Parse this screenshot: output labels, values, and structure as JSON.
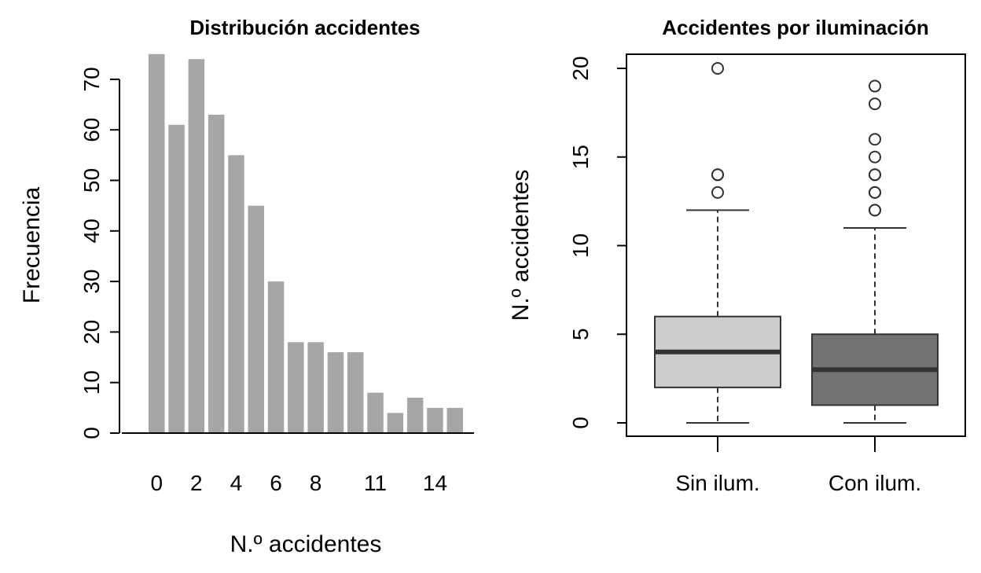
{
  "chart_data": [
    {
      "type": "bar",
      "title": "Distribución accidentes",
      "xlabel": "N.º accidentes",
      "ylabel": "Frecuencia",
      "categories": [
        "0",
        "1",
        "2",
        "3",
        "4",
        "5",
        "6",
        "7",
        "8",
        "9",
        "10",
        "11",
        "12",
        "13",
        "14",
        "15"
      ],
      "values": [
        75,
        61,
        74,
        63,
        55,
        45,
        30,
        18,
        18,
        16,
        16,
        8,
        4,
        7,
        5,
        5
      ],
      "x_tick_labels": [
        "0",
        "2",
        "4",
        "6",
        "8",
        "11",
        "14"
      ],
      "y_ticks": [
        "0",
        "10",
        "20",
        "30",
        "40",
        "50",
        "60",
        "70"
      ],
      "ylim": [
        0,
        75
      ],
      "bar_color": "#a6a6a6",
      "grid": false
    },
    {
      "type": "boxplot",
      "title": "Accidentes por iluminación",
      "xlabel": "",
      "ylabel": "N.º accidentes",
      "ylim": [
        0,
        20
      ],
      "y_ticks": [
        "0",
        "5",
        "10",
        "15",
        "20"
      ],
      "grid": false,
      "groups": [
        {
          "label": "Sin ilum.",
          "color": "#cccccc",
          "min": 0,
          "q1": 2,
          "median": 4,
          "q3": 6,
          "max": 12,
          "outliers": [
            13,
            14,
            14,
            20
          ]
        },
        {
          "label": "Con ilum.",
          "color": "#737373",
          "min": 0,
          "q1": 1,
          "median": 3,
          "q3": 5,
          "max": 11,
          "outliers": [
            12,
            12,
            13,
            13,
            14,
            14,
            15,
            16,
            18,
            19
          ]
        }
      ]
    }
  ]
}
